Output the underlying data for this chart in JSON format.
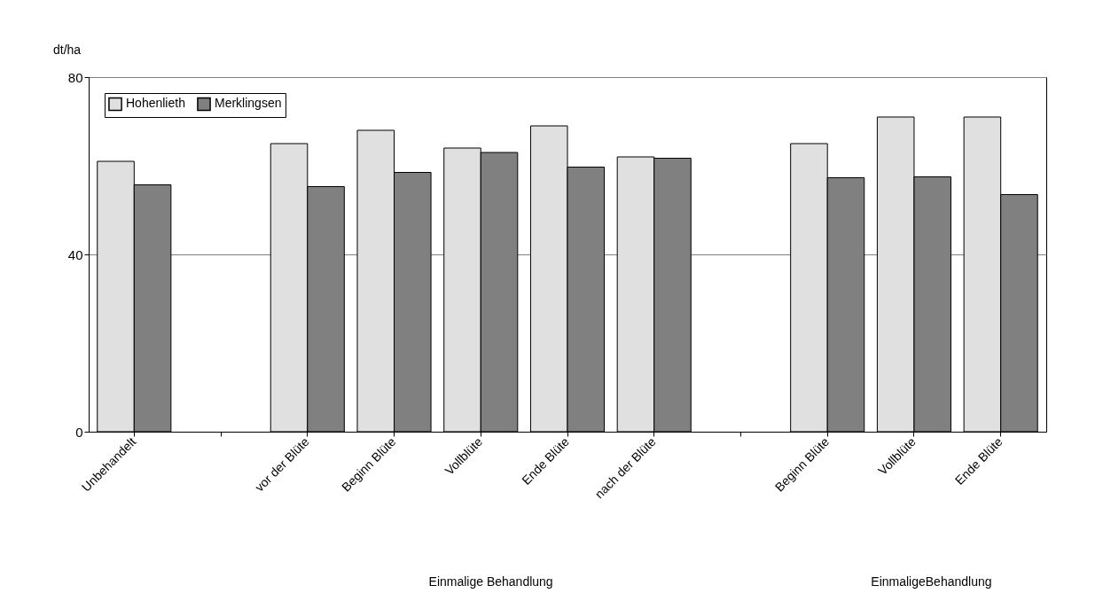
{
  "chart_data": {
    "type": "bar",
    "categories": [
      "Unbehandelt",
      null,
      "vor der Blüte",
      "Beginn Blüte",
      "Vollblüte",
      "Ende Blüte",
      "nach der Blüte",
      null,
      "Beginn Blüte",
      "Vollblüte",
      "Ende Blüte"
    ],
    "series": [
      {
        "name": "Hohenlieth",
        "color": "#e0e0e0",
        "values": [
          61,
          null,
          65,
          68,
          64,
          69,
          62,
          null,
          65,
          71,
          71
        ]
      },
      {
        "name": "Merklingsen",
        "color": "#808080",
        "values": [
          55.7,
          null,
          55.3,
          58.5,
          63,
          59.7,
          61.7,
          null,
          57.3,
          57.5,
          53.5
        ]
      }
    ],
    "ylabel": "dt/ha",
    "ylim": [
      0,
      80
    ],
    "yticks": [
      0,
      40,
      80
    ],
    "grid": "y",
    "legend": "top left",
    "annotations": [
      "Einmalige Behandlung",
      "EinmaligeBehandlung"
    ]
  }
}
